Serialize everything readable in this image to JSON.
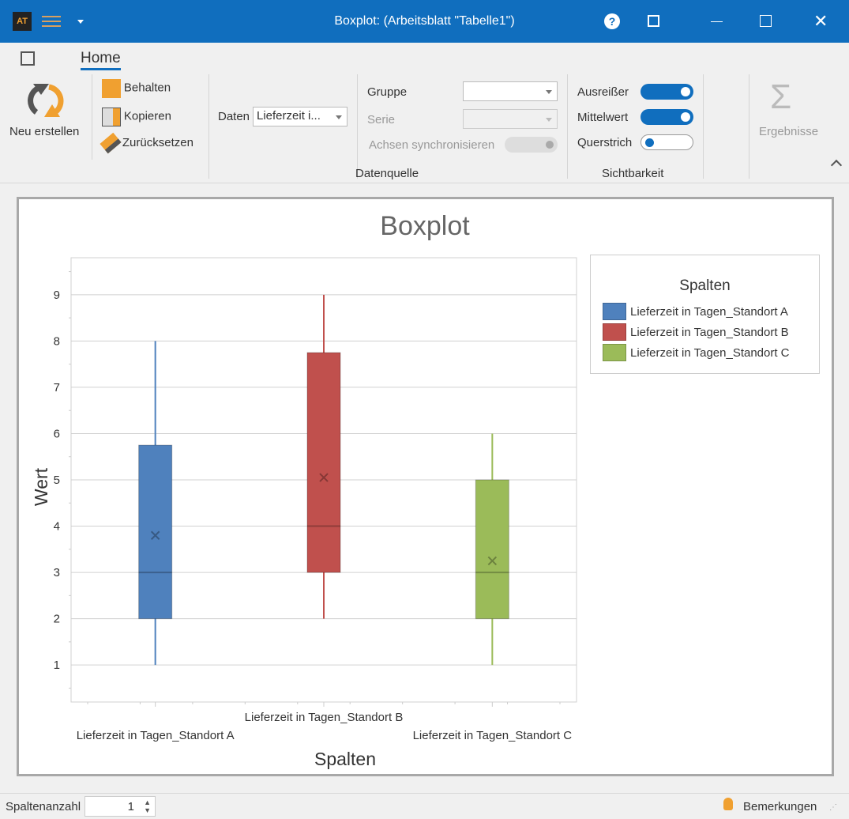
{
  "titlebar": {
    "title": "Boxplot:  (Arbeitsblatt \"Tabelle1\")",
    "logo": "AT"
  },
  "ribbon": {
    "tab": "Home",
    "new_label": "Neu erstellen",
    "keep_label": "Behalten",
    "copy_label": "Kopieren",
    "reset_label": "Zurücksetzen",
    "data_label": "Daten",
    "data_value": "Lieferzeit i...",
    "group_label": "Gruppe",
    "series_label": "Serie",
    "sync_label": "Achsen synchronisieren",
    "datasource_label": "Datenquelle",
    "outliers_label": "Ausreißer",
    "mean_label": "Mittelwert",
    "crossbar_label": "Querstrich",
    "visibility_label": "Sichtbarkeit",
    "results_label": "Ergebnisse",
    "toggles": {
      "outliers": true,
      "mean": true,
      "crossbar": false,
      "sync": false
    }
  },
  "statusbar": {
    "columns_label": "Spaltenanzahl",
    "columns_value": "1",
    "notes_label": "Bemerkungen"
  },
  "chart_data": {
    "type": "boxplot",
    "title": "Boxplot",
    "xlabel": "Spalten",
    "ylabel": "Wert",
    "ylim": [
      0.2,
      9.8
    ],
    "yticks": [
      1,
      2,
      3,
      4,
      5,
      6,
      7,
      8,
      9
    ],
    "legend_title": "Spalten",
    "legend_position": "right",
    "series": [
      {
        "name": "Lieferzeit in Tagen_Standort A",
        "color": "#4f81bd",
        "min": 1,
        "q1": 2,
        "median": 3,
        "q3": 5.75,
        "max": 8,
        "mean": 3.8
      },
      {
        "name": "Lieferzeit in Tagen_Standort B",
        "color": "#c0504d",
        "min": 2,
        "q1": 3,
        "median": 4,
        "q3": 7.75,
        "max": 9,
        "mean": 5.05
      },
      {
        "name": "Lieferzeit in Tagen_Standort C",
        "color": "#9bbb59",
        "min": 1,
        "q1": 2,
        "median": 3,
        "q3": 5,
        "max": 6,
        "mean": 3.25
      }
    ]
  }
}
